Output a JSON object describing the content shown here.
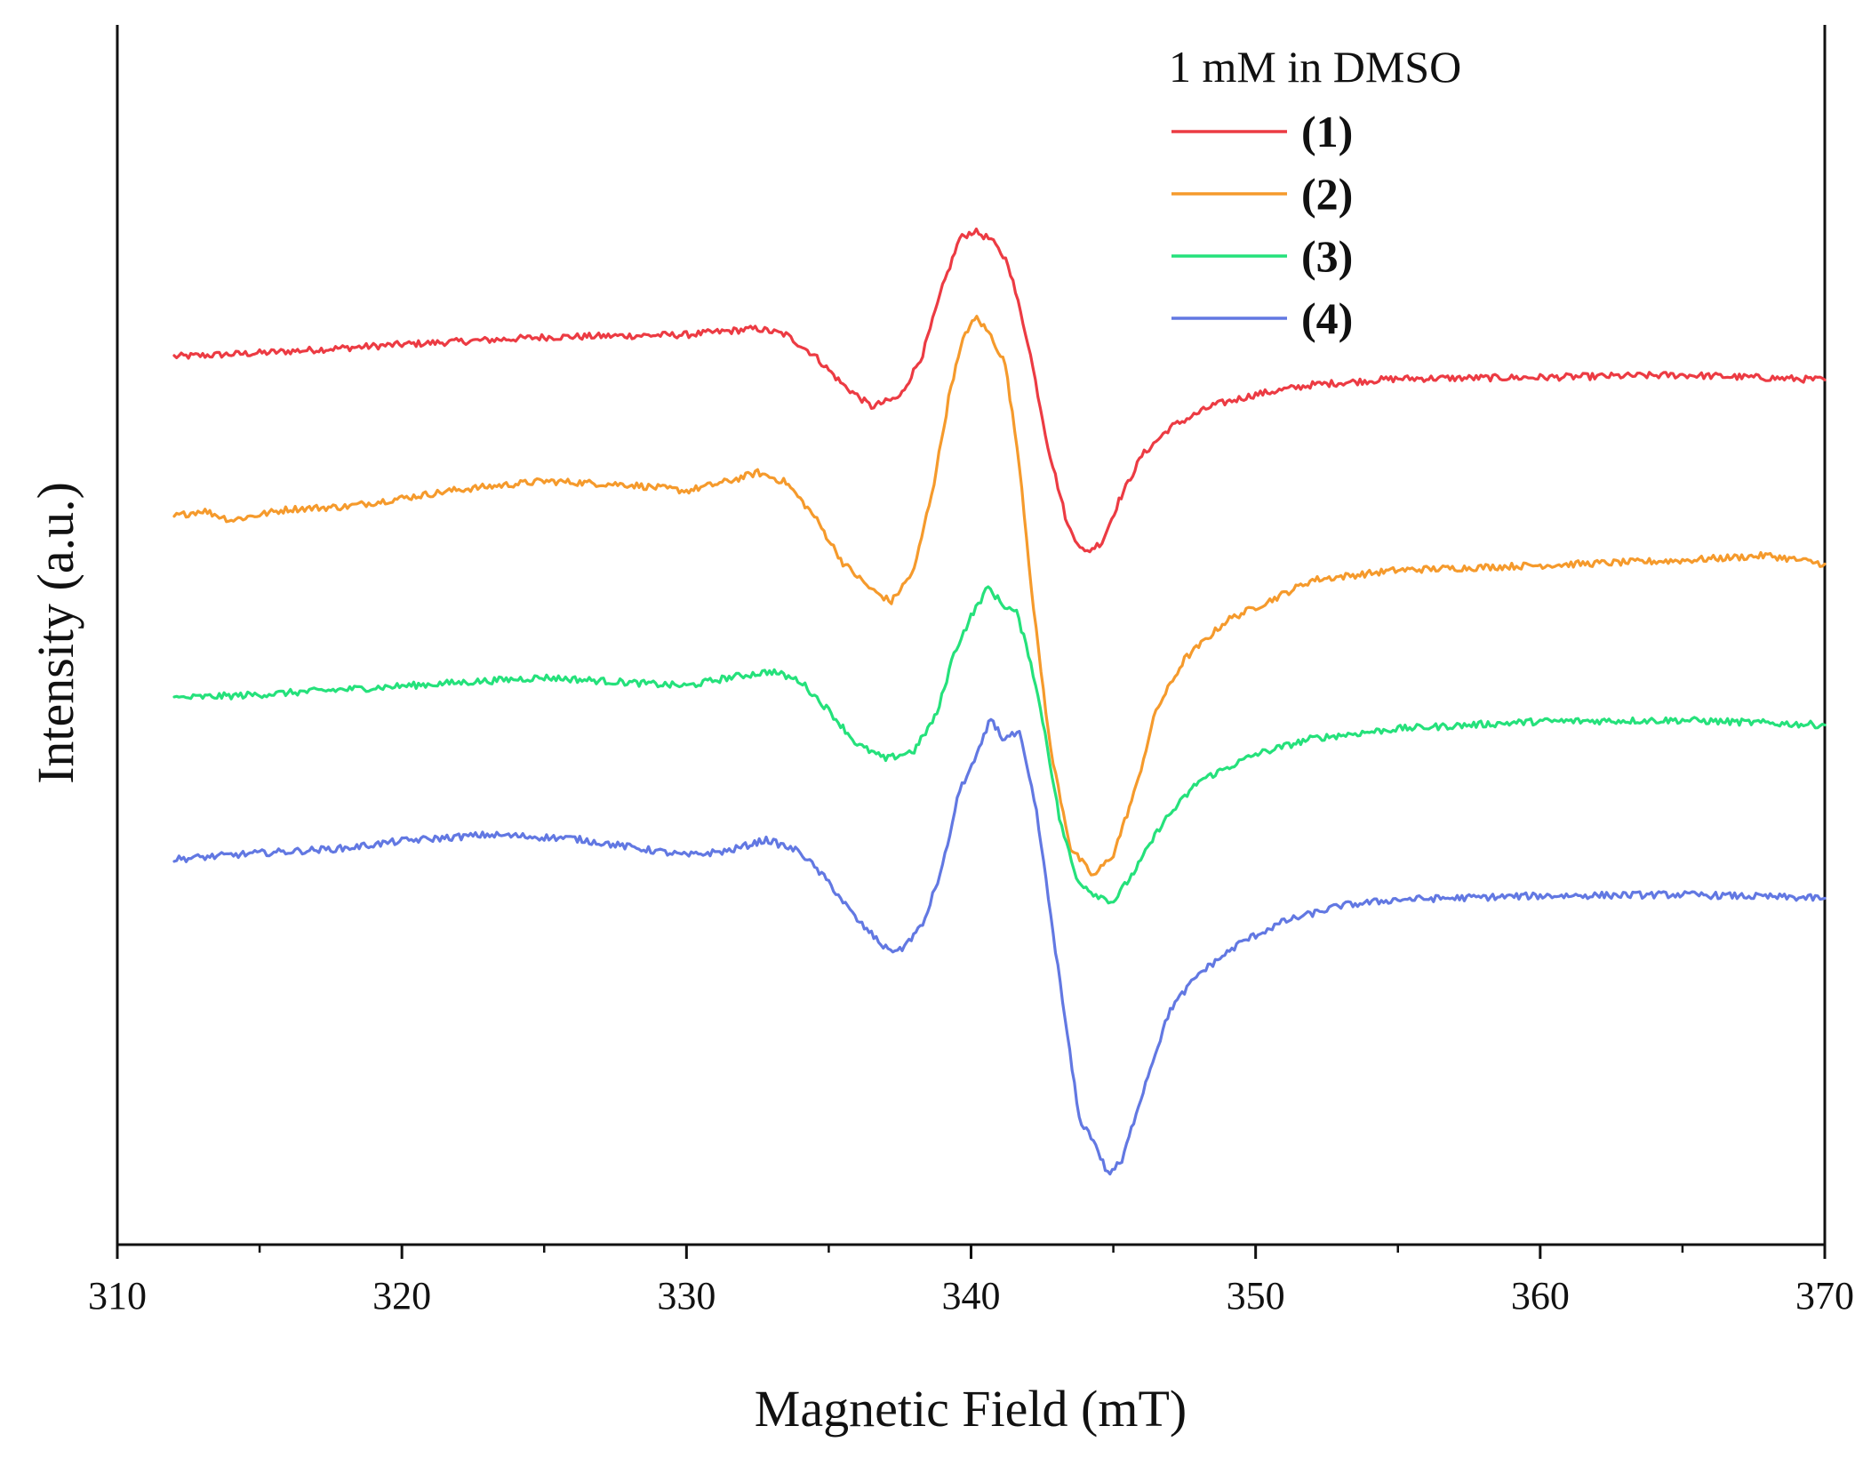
{
  "chart_data": {
    "type": "line",
    "title": "",
    "xlabel": "Magnetic Field (mT)",
    "ylabel": "Intensity (a.u.)",
    "xlim": [
      310,
      370
    ],
    "ylim": [
      0,
      100
    ],
    "x_ticks": [
      310,
      320,
      330,
      340,
      350,
      360,
      370
    ],
    "y_ticks_shown": false,
    "grid": false,
    "legend": {
      "title": "1 mM in DMSO",
      "position": "top-right",
      "entries": [
        "(1)",
        "(2)",
        "(3)",
        "(4)"
      ]
    },
    "series": [
      {
        "name": "(1)",
        "color": "#ec3b43",
        "points": [
          [
            312,
            72.8
          ],
          [
            315,
            73.1
          ],
          [
            320,
            73.8
          ],
          [
            325,
            74.4
          ],
          [
            330,
            74.6
          ],
          [
            331.5,
            74.9
          ],
          [
            332.5,
            75.1
          ],
          [
            333.5,
            74.6
          ],
          [
            334.5,
            72.9
          ],
          [
            335.5,
            70.5
          ],
          [
            336.5,
            68.7
          ],
          [
            337.5,
            69.5
          ],
          [
            338.3,
            73
          ],
          [
            339,
            78.5
          ],
          [
            339.6,
            82.5
          ],
          [
            340.1,
            83.1
          ],
          [
            340.7,
            82.4
          ],
          [
            341.3,
            80.5
          ],
          [
            342,
            74
          ],
          [
            342.7,
            65.5
          ],
          [
            343.4,
            58.9
          ],
          [
            344,
            56.7
          ],
          [
            344.6,
            57.6
          ],
          [
            345.2,
            61
          ],
          [
            346,
            64.7
          ],
          [
            347,
            67
          ],
          [
            348.5,
            68.8
          ],
          [
            350,
            69.7
          ],
          [
            352,
            70.5
          ],
          [
            355,
            71
          ],
          [
            360,
            71.1
          ],
          [
            365,
            71.3
          ],
          [
            370,
            70.9
          ]
        ]
      },
      {
        "name": "(2)",
        "color": "#f59a2c",
        "points": [
          [
            312,
            59.7
          ],
          [
            313,
            60.2
          ],
          [
            314,
            59.4
          ],
          [
            316,
            60.3
          ],
          [
            318,
            60.5
          ],
          [
            320,
            61.2
          ],
          [
            322,
            61.9
          ],
          [
            325,
            62.6
          ],
          [
            328,
            62.3
          ],
          [
            330,
            61.8
          ],
          [
            331.5,
            62.6
          ],
          [
            332.5,
            63.3
          ],
          [
            333.5,
            62.5
          ],
          [
            334.5,
            59.7
          ],
          [
            335.5,
            55.9
          ],
          [
            336.5,
            53.7
          ],
          [
            337.2,
            52.7
          ],
          [
            338,
            55.3
          ],
          [
            338.7,
            62.5
          ],
          [
            339.3,
            70.5
          ],
          [
            339.8,
            74.8
          ],
          [
            340.2,
            76
          ],
          [
            340.7,
            74.5
          ],
          [
            341.2,
            72.2
          ],
          [
            341.7,
            64
          ],
          [
            342.2,
            52
          ],
          [
            342.8,
            40.5
          ],
          [
            343.5,
            32.5
          ],
          [
            344.3,
            30.2
          ],
          [
            345,
            32
          ],
          [
            345.8,
            37.5
          ],
          [
            346.5,
            43.8
          ],
          [
            347.5,
            48
          ],
          [
            349,
            51.2
          ],
          [
            350.5,
            52.8
          ],
          [
            352,
            54.5
          ],
          [
            355,
            55.3
          ],
          [
            360,
            55.7
          ],
          [
            365,
            56.1
          ],
          [
            368,
            56.5
          ],
          [
            370,
            55.8
          ]
        ]
      },
      {
        "name": "(3)",
        "color": "#25e17b",
        "points": [
          [
            312,
            44.8
          ],
          [
            315,
            45.1
          ],
          [
            320,
            45.8
          ],
          [
            325,
            46.5
          ],
          [
            330,
            45.8
          ],
          [
            331.5,
            46.5
          ],
          [
            333,
            47
          ],
          [
            334,
            46.2
          ],
          [
            335,
            43.8
          ],
          [
            336,
            41
          ],
          [
            337,
            39.8
          ],
          [
            338,
            40.5
          ],
          [
            338.8,
            43.5
          ],
          [
            339.4,
            48.5
          ],
          [
            340,
            51.5
          ],
          [
            340.6,
            53.9
          ],
          [
            341.1,
            52.5
          ],
          [
            341.6,
            51.8
          ],
          [
            342.1,
            47.8
          ],
          [
            342.6,
            42
          ],
          [
            343.1,
            35
          ],
          [
            343.7,
            30
          ],
          [
            344.3,
            28.8
          ],
          [
            345,
            28.1
          ],
          [
            345.8,
            30.8
          ],
          [
            346.7,
            34.5
          ],
          [
            348,
            38
          ],
          [
            350,
            40.2
          ],
          [
            352,
            41.5
          ],
          [
            355,
            42.3
          ],
          [
            360,
            42.9
          ],
          [
            365,
            43
          ],
          [
            370,
            42.6
          ]
        ]
      },
      {
        "name": "(4)",
        "color": "#6278e2",
        "points": [
          [
            312,
            31.6
          ],
          [
            315,
            32.1
          ],
          [
            318,
            32.5
          ],
          [
            320,
            33.1
          ],
          [
            323,
            33.6
          ],
          [
            326,
            33.3
          ],
          [
            328,
            32.6
          ],
          [
            330,
            31.9
          ],
          [
            331.5,
            32.3
          ],
          [
            332.8,
            33.2
          ],
          [
            334,
            32.2
          ],
          [
            335,
            29.7
          ],
          [
            336,
            26.6
          ],
          [
            337,
            24.3
          ],
          [
            337.5,
            24.1
          ],
          [
            338.3,
            26.2
          ],
          [
            339,
            31
          ],
          [
            339.6,
            37.3
          ],
          [
            340.2,
            40
          ],
          [
            340.7,
            43.2
          ],
          [
            341.1,
            41.5
          ],
          [
            341.7,
            41.9
          ],
          [
            342.3,
            35.5
          ],
          [
            342.8,
            27
          ],
          [
            343.3,
            18.5
          ],
          [
            343.8,
            10.3
          ],
          [
            344.3,
            8.6
          ],
          [
            344.8,
            5.8
          ],
          [
            345.3,
            6.8
          ],
          [
            345.8,
            10.8
          ],
          [
            346.3,
            14.5
          ],
          [
            347,
            19.3
          ],
          [
            348,
            22.2
          ],
          [
            349.5,
            24.8
          ],
          [
            351,
            26.5
          ],
          [
            353,
            27.8
          ],
          [
            355,
            28.3
          ],
          [
            360,
            28.6
          ],
          [
            365,
            28.7
          ],
          [
            370,
            28.4
          ]
        ]
      }
    ]
  }
}
